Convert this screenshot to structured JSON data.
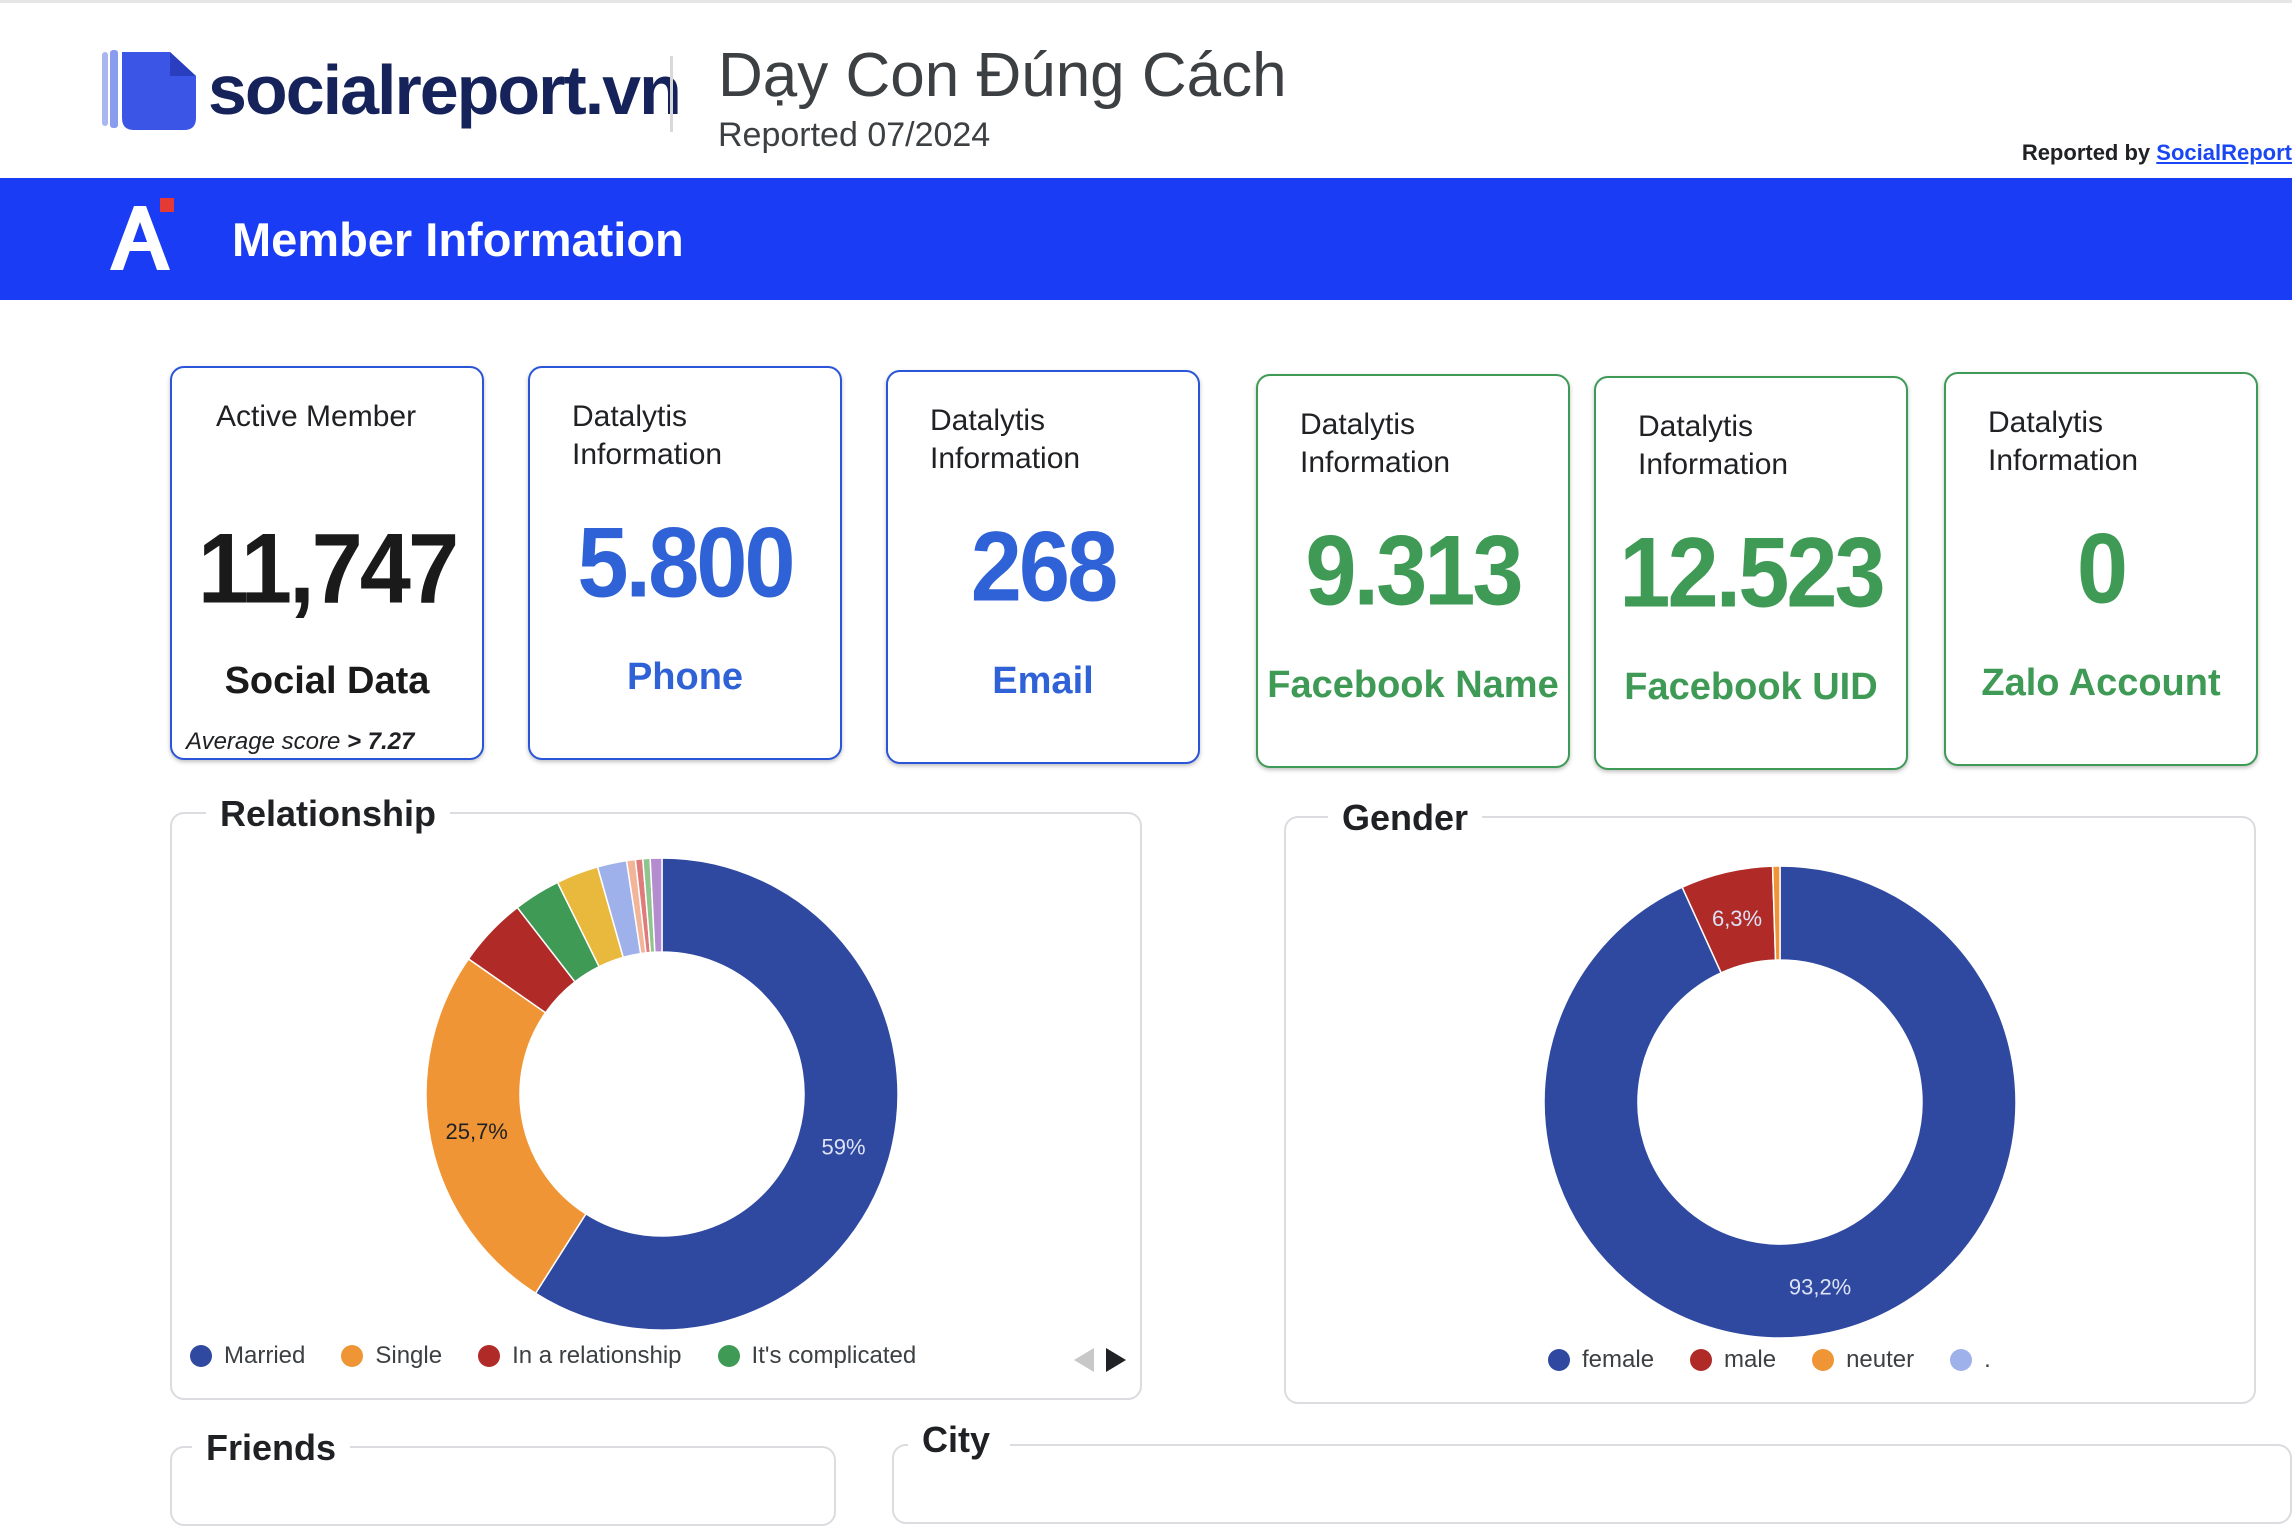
{
  "header": {
    "brand": "socialreport.vn",
    "report_title": "Dạy Con Đúng Cách",
    "report_subtitle": "Reported 07/2024",
    "reported_by_label": "Reported by",
    "reported_by_link": "SocialReport"
  },
  "banner": {
    "title": "Member Information"
  },
  "cards": [
    {
      "label": "Active Member",
      "value": "11,747",
      "caption": "Social Data",
      "note_prefix": "Average score ",
      "note_value": "> 7.27"
    },
    {
      "label": "Datalytis\nInformation",
      "value": "5.800",
      "caption": "Phone"
    },
    {
      "label": "Datalytis\nInformation",
      "value": "268",
      "caption": "Email"
    },
    {
      "label": "Datalytis\nInformation",
      "value": "9.313",
      "caption": "Facebook Name"
    },
    {
      "label": "Datalytis\nInformation",
      "value": "12.523",
      "caption": "Facebook UID"
    },
    {
      "label": "Datalytis\nInformation",
      "value": "0",
      "caption": "Zalo Account"
    }
  ],
  "panels": {
    "relationship_title": "Relationship",
    "gender_title": "Gender",
    "friends_title": "Friends",
    "city_title": "City"
  },
  "chart_data": [
    {
      "type": "pie",
      "title": "Relationship",
      "donut": true,
      "series": [
        {
          "name": "Married",
          "value": 59.0,
          "label": "59%",
          "color": "#2f48a0"
        },
        {
          "name": "Single",
          "value": 25.7,
          "label": "25,7%",
          "color": "#f09535"
        },
        {
          "name": "In a relationship",
          "value": 4.8,
          "color": "#b02a27"
        },
        {
          "name": "It's complicated",
          "value": 3.2,
          "color": "#3f9a55"
        },
        {
          "value": 2.9,
          "color": "#e8b93c"
        },
        {
          "value": 2.0,
          "color": "#9eb1ea"
        },
        {
          "value": 0.6,
          "color": "#f2b59a"
        },
        {
          "value": 0.5,
          "color": "#e07b7b"
        },
        {
          "value": 0.5,
          "color": "#8fc48f"
        },
        {
          "value": 0.8,
          "color": "#b48ccf"
        }
      ],
      "legend_visible": [
        "Married",
        "Single",
        "In a relationship",
        "It's complicated"
      ],
      "legend_position": "bottom"
    },
    {
      "type": "pie",
      "title": "Gender",
      "donut": true,
      "series": [
        {
          "name": "female",
          "value": 93.2,
          "label": "93,2%",
          "color": "#2f48a0"
        },
        {
          "name": "male",
          "value": 6.3,
          "label": "6,3%",
          "color": "#b02a27"
        },
        {
          "name": "neuter",
          "value": 0.5,
          "color": "#f09535"
        },
        {
          "name": ".",
          "value": 0.0,
          "color": "#9eb1ea"
        }
      ],
      "legend_position": "bottom"
    }
  ]
}
